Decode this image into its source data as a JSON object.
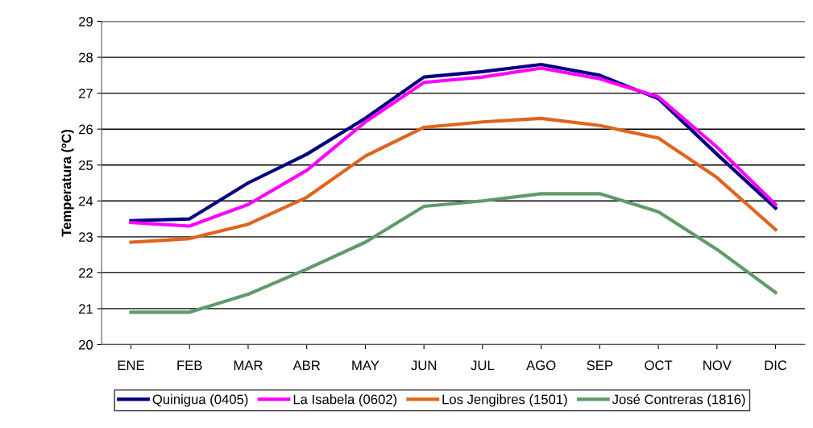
{
  "chart_data": {
    "type": "line",
    "ylabel": "Temperatura (ºC)",
    "categories": [
      "ENE",
      "FEB",
      "MAR",
      "ABR",
      "MAY",
      "JUN",
      "JUL",
      "AGO",
      "SEP",
      "OCT",
      "NOV",
      "DIC"
    ],
    "series": [
      {
        "name": "Quinigua (0405)",
        "color": "#000080",
        "values": [
          23.45,
          23.5,
          24.5,
          25.3,
          26.3,
          27.45,
          27.6,
          27.8,
          27.5,
          26.85,
          25.3,
          23.8
        ]
      },
      {
        "name": "La Isabela (0602)",
        "color": "#ff00ff",
        "values": [
          23.4,
          23.3,
          23.9,
          24.85,
          26.2,
          27.3,
          27.45,
          27.7,
          27.4,
          26.9,
          25.5,
          23.9
        ]
      },
      {
        "name": "Los Jengibres (1501)",
        "color": "#e0641e",
        "values": [
          22.85,
          22.95,
          23.35,
          24.1,
          25.25,
          26.05,
          26.2,
          26.3,
          26.1,
          25.75,
          24.65,
          23.2
        ]
      },
      {
        "name": "José Contreras (1816)",
        "color": "#5f9b6a",
        "values": [
          20.9,
          20.9,
          21.4,
          22.1,
          22.85,
          23.85,
          24.0,
          24.2,
          24.2,
          23.7,
          22.65,
          21.45
        ]
      }
    ],
    "ylim": [
      20,
      29
    ],
    "yticks": [
      20,
      21,
      22,
      23,
      24,
      25,
      26,
      27,
      28,
      29
    ],
    "grid": "y",
    "legend": "bottom",
    "marker": "none",
    "line_style": "solid"
  }
}
